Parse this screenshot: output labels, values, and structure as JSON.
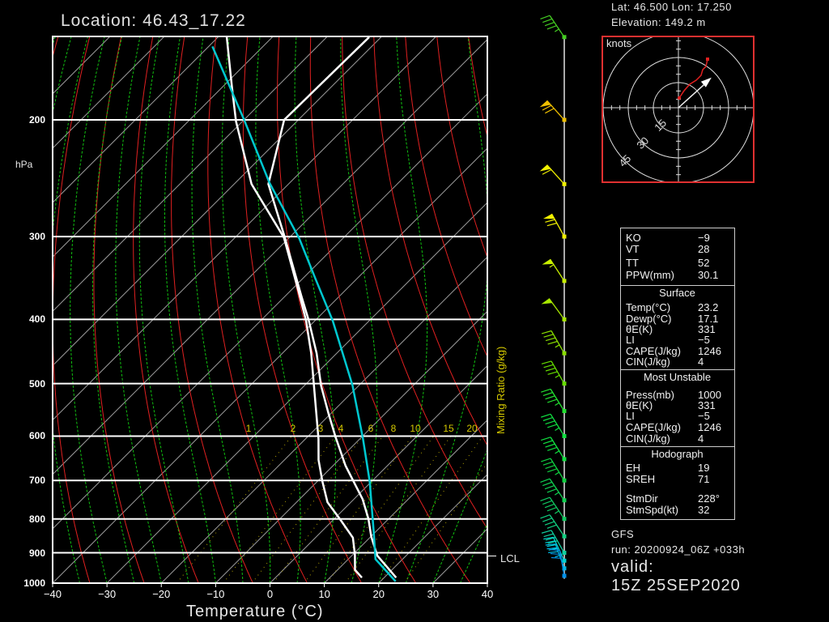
{
  "header": {
    "location": "Location: 46.43_17.22",
    "lat_lon": "Lat: 46.500    Lon: 17.250",
    "elevation": "Elevation: 149.2   m"
  },
  "chart_data": {
    "type": "line",
    "subtype": "skew-T log-P",
    "xlabel": "Temperature (°C)",
    "ylabel": "hPa",
    "xlim": [
      -40,
      40
    ],
    "ylim": [
      1000,
      150
    ],
    "y_scale": "log",
    "x_ticks": [
      "−40",
      "−30",
      "−20",
      "−10",
      "0",
      "10",
      "20",
      "30",
      "40"
    ],
    "x_tick_values": [
      -40,
      -30,
      -20,
      -10,
      0,
      10,
      20,
      30,
      40
    ],
    "y_ticks": [
      200,
      300,
      400,
      500,
      600,
      700,
      800,
      900,
      1000
    ],
    "mixing_ratio_title": "Mixing Ratio (g/kg)",
    "mixing_ratio_values": [
      1,
      2,
      3,
      4,
      6,
      8,
      10,
      15,
      20
    ],
    "mixing_ratio_labels": [
      "1",
      "2",
      "3",
      "4",
      "6",
      "8",
      "10",
      "15",
      "20"
    ],
    "lcl_label": "LCL",
    "lcl_pressure": 910,
    "series": [
      {
        "key": "temperature",
        "color": "#ffffff",
        "p": [
          981,
          909,
          851,
          800,
          747,
          665,
          602,
          555,
          503,
          450,
          402,
          369,
          299,
          250,
          200,
          150
        ],
        "T": [
          22.2,
          14.7,
          10.1,
          6.3,
          1.6,
          -7.7,
          -14.8,
          -20.4,
          -27.0,
          -33.7,
          -41.1,
          -47.0,
          -61.3,
          -73.7,
          -82.6,
          -82.2
        ]
      },
      {
        "key": "dewpoint",
        "color": "#ffffff",
        "p": [
          981,
          955,
          906,
          854,
          805,
          755,
          703,
          652,
          606,
          450,
          402,
          364,
          301,
          250,
          201,
          178,
          150
        ],
        "T": [
          15.9,
          13.2,
          10.4,
          6.9,
          1.6,
          -4.3,
          -9.0,
          -13.7,
          -17.6,
          -34.7,
          -41.6,
          -48.2,
          -61.0,
          -76.8,
          -91.2,
          -98.4,
          -108.4
        ]
      },
      {
        "key": "parcel",
        "color": "#00c8d0",
        "p": [
          994,
          920,
          836,
          703,
          606,
          503,
          402,
          347,
          302,
          249,
          201,
          155
        ],
        "T": [
          22.8,
          15.0,
          9.6,
          -0.3,
          -9.4,
          -21.2,
          -36.7,
          -47.7,
          -58.0,
          -73.7,
          -89.6,
          -109.3
        ]
      }
    ],
    "wind_barbs": [
      {
        "p": 150,
        "dir": 214,
        "kt": 45,
        "color": "#44cc22"
      },
      {
        "p": 200,
        "dir": 222,
        "kt": 70,
        "color": "#f0c000"
      },
      {
        "p": 250,
        "dir": 222,
        "kt": 60,
        "color": "#f0f000"
      },
      {
        "p": 300,
        "dir": 209,
        "kt": 70,
        "color": "#f0f000"
      },
      {
        "p": 350,
        "dir": 213,
        "kt": 55,
        "color": "#c8f000"
      },
      {
        "p": 400,
        "dir": 216,
        "kt": 50,
        "color": "#a8e800"
      },
      {
        "p": 450,
        "dir": 210,
        "kt": 45,
        "color": "#88dd00"
      },
      {
        "p": 500,
        "dir": 210,
        "kt": 45,
        "color": "#66dd00"
      },
      {
        "p": 550,
        "dir": 212,
        "kt": 45,
        "color": "#22e030"
      },
      {
        "p": 600,
        "dir": 212,
        "kt": 45,
        "color": "#10e040"
      },
      {
        "p": 650,
        "dir": 212,
        "kt": 45,
        "color": "#10e040"
      },
      {
        "p": 700,
        "dir": 212,
        "kt": 45,
        "color": "#10d040"
      },
      {
        "p": 750,
        "dir": 214,
        "kt": 45,
        "color": "#10d050"
      },
      {
        "p": 800,
        "dir": 214,
        "kt": 45,
        "color": "#10c860"
      },
      {
        "p": 850,
        "dir": 214,
        "kt": 40,
        "color": "#10d080"
      },
      {
        "p": 900,
        "dir": 210,
        "kt": 40,
        "color": "#10d0a0"
      },
      {
        "p": 925,
        "dir": 205,
        "kt": 40,
        "color": "#00d0d0"
      },
      {
        "p": 950,
        "dir": 200,
        "kt": 35,
        "color": "#00b8e8"
      },
      {
        "p": 975,
        "dir": 190,
        "kt": 30,
        "color": "#0090e8"
      }
    ]
  },
  "hodograph": {
    "units_label": "knots",
    "ring_labels": [
      "15",
      "30",
      "45"
    ],
    "ring_values": [
      15,
      30,
      45
    ],
    "border_color": "#e03030",
    "curve_color": "#e02020",
    "storm_motion": {
      "dir": 228,
      "kt": 32
    }
  },
  "stats": {
    "indices": [
      {
        "label": "KO",
        "value": "−9"
      },
      {
        "label": "VT",
        "value": "28"
      },
      {
        "label": "TT",
        "value": "52"
      },
      {
        "label": "PPW(mm)",
        "value": "30.1"
      }
    ],
    "surface": {
      "title": "Surface",
      "rows": [
        {
          "label": "Temp(°C)",
          "value": "23.2"
        },
        {
          "label": "Dewp(°C)",
          "value": "17.1"
        },
        {
          "label": "θE(K)",
          "value": "331"
        },
        {
          "label": "LI",
          "value": "−5"
        },
        {
          "label": "CAPE(J/kg)",
          "value": "1246"
        },
        {
          "label": "CIN(J/kg)",
          "value": "4"
        }
      ]
    },
    "most_unstable": {
      "title": "Most Unstable",
      "rows": [
        {
          "label": "Press(mb)",
          "value": "1000"
        },
        {
          "label": "θE(K)",
          "value": "331"
        },
        {
          "label": "LI",
          "value": "−5"
        },
        {
          "label": "CAPE(J/kg)",
          "value": "1246"
        },
        {
          "label": "CIN(J/kg)",
          "value": "4"
        }
      ]
    },
    "hodograph": {
      "title": "Hodograph",
      "rows": [
        {
          "label": "EH",
          "value": "19"
        },
        {
          "label": "SREH",
          "value": "71"
        },
        {
          "label": "StmDir",
          "value": "228°"
        },
        {
          "label": "StmSpd(kt)",
          "value": "32"
        }
      ]
    }
  },
  "footer": {
    "model": "GFS",
    "run": "run:  20200924_06Z +033h",
    "valid_label": "valid:",
    "valid_time": "15Z 25SEP2020"
  }
}
